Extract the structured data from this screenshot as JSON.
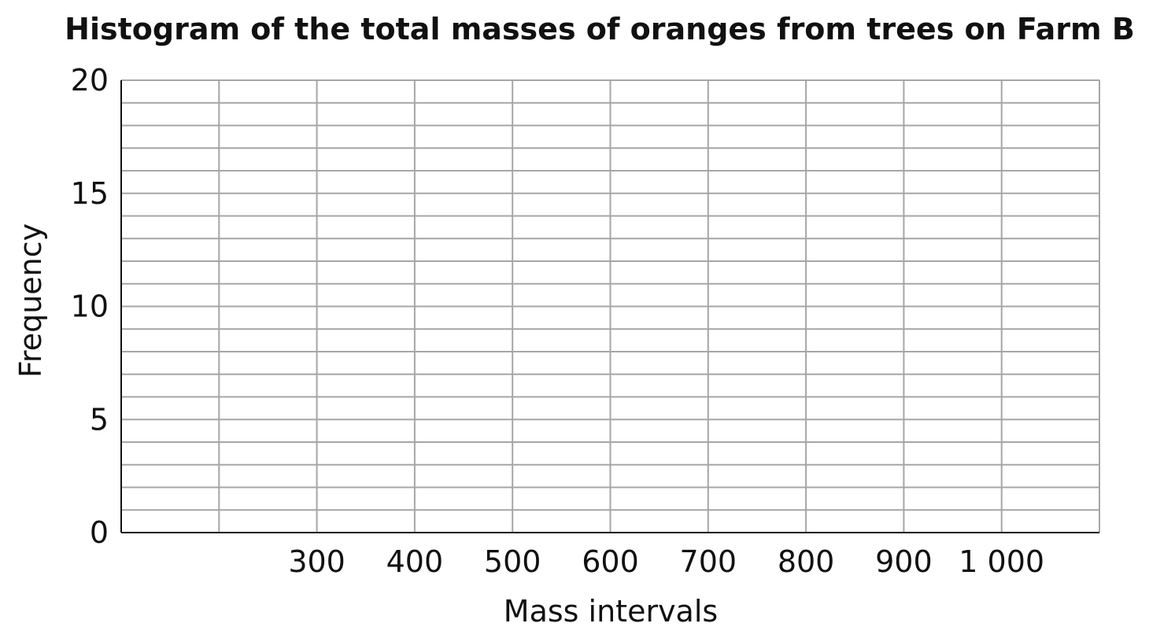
{
  "chart_data": {
    "type": "bar",
    "title": "Histogram of the total masses of oranges from trees on Farm B",
    "xlabel": "Mass intervals",
    "ylabel": "Frequency",
    "x_range": [
      100,
      1100
    ],
    "x_grid_step": 100,
    "x_tick_values": [
      300,
      400,
      500,
      600,
      700,
      800,
      900,
      1000
    ],
    "x_tick_labels": [
      "300",
      "400",
      "500",
      "600",
      "700",
      "800",
      "900",
      "1 000"
    ],
    "ylim": [
      0,
      20
    ],
    "y_grid_step": 1,
    "y_tick_values": [
      0,
      5,
      10,
      15,
      20
    ],
    "y_tick_labels": [
      "0",
      "5",
      "10",
      "15",
      "20"
    ],
    "grid": true,
    "series": [],
    "colors": {
      "grid": "#a6a6a6",
      "axis": "#111111",
      "text": "#111111"
    }
  }
}
